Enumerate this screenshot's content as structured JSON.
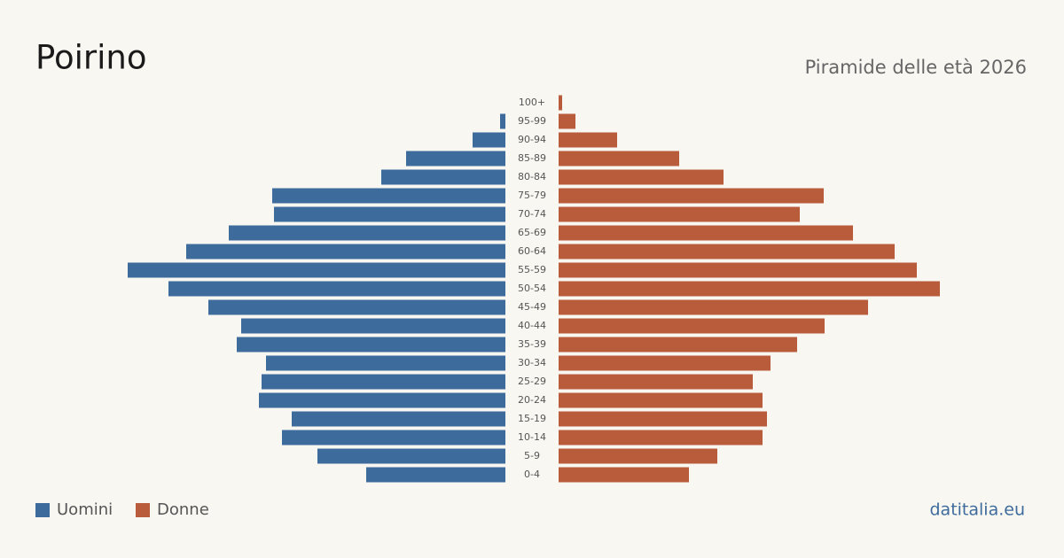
{
  "chart_data": {
    "type": "pyramid",
    "title": "Poirino",
    "subtitle": "Piramide delle età 2026",
    "source": "datitalia.eu",
    "categories": [
      "100+",
      "95-99",
      "90-94",
      "85-89",
      "80-84",
      "75-79",
      "70-74",
      "65-69",
      "60-64",
      "55-59",
      "50-54",
      "45-49",
      "40-44",
      "35-39",
      "30-34",
      "25-29",
      "20-24",
      "15-19",
      "10-14",
      "5-9",
      "0-4"
    ],
    "series": [
      {
        "name": "Uomini",
        "color": "#3d6b9c",
        "values": [
          0,
          6,
          37,
          112,
          140,
          263,
          261,
          312,
          360,
          426,
          380,
          335,
          298,
          303,
          270,
          275,
          278,
          241,
          252,
          212,
          157
        ]
      },
      {
        "name": "Donne",
        "color": "#b85c3c",
        "values": [
          4,
          19,
          66,
          136,
          186,
          299,
          272,
          332,
          379,
          404,
          430,
          349,
          300,
          269,
          239,
          219,
          230,
          235,
          230,
          179,
          147
        ]
      }
    ]
  }
}
